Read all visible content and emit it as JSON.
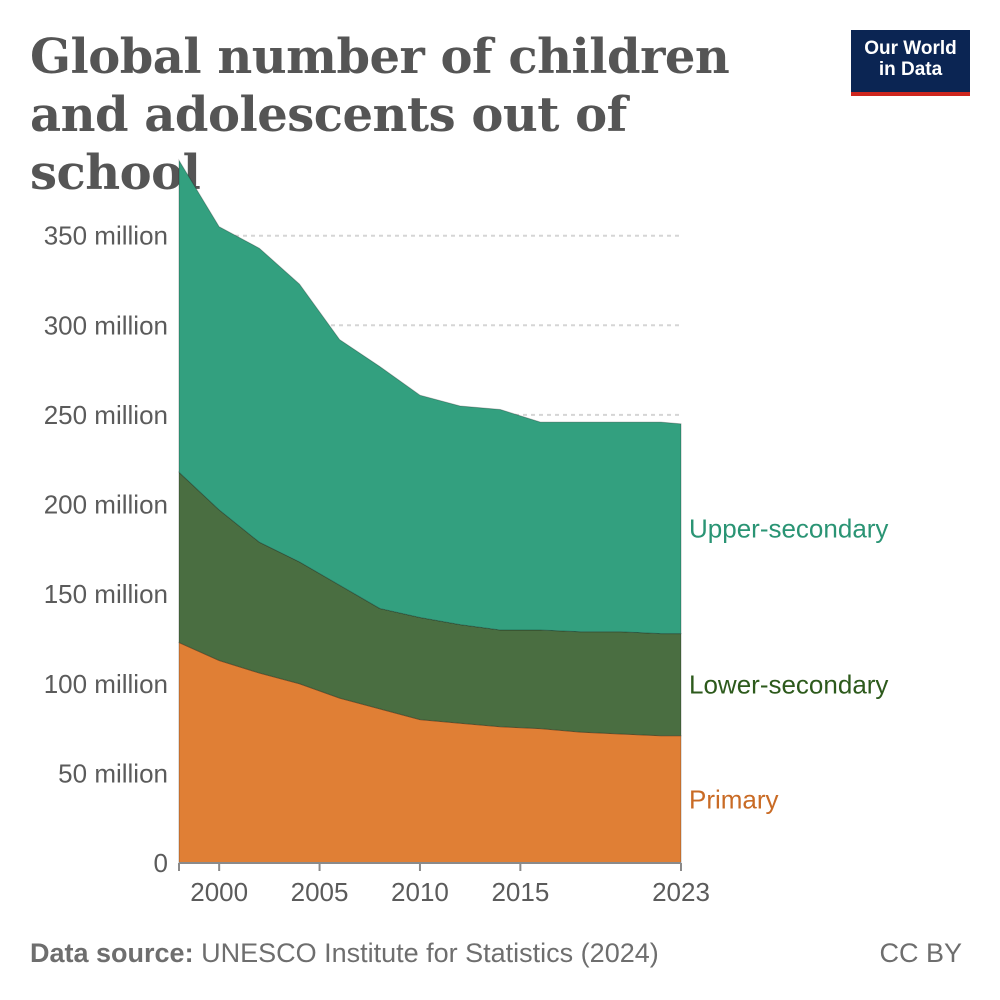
{
  "title": "Global number of children and adolescents out of school",
  "logo": {
    "line1": "Our World",
    "line2": "in Data"
  },
  "footer": {
    "source_label": "Data source:",
    "source_text": "UNESCO Institute for Statistics (2024)",
    "license": "CC BY"
  },
  "colors": {
    "primary": "#e07f35",
    "lower_secondary": "#4a6e41",
    "upper_secondary": "#33a07f",
    "primary_label": "#c96b25",
    "lower_label": "#2d5a1c",
    "upper_label": "#2a9474",
    "grid": "#d5d5d5"
  },
  "chart_data": {
    "type": "area",
    "stacked": true,
    "x": [
      1998,
      2000,
      2002,
      2004,
      2006,
      2008,
      2010,
      2012,
      2014,
      2016,
      2018,
      2020,
      2022,
      2023
    ],
    "series": [
      {
        "name": "Primary",
        "values": [
          123,
          113,
          106,
          100,
          92,
          86,
          80,
          78,
          76,
          75,
          73,
          72,
          71,
          71
        ]
      },
      {
        "name": "Lower-secondary",
        "values": [
          95,
          84,
          73,
          68,
          63,
          56,
          57,
          55,
          54,
          55,
          56,
          57,
          57,
          57
        ]
      },
      {
        "name": "Upper-secondary",
        "values": [
          174,
          158,
          164,
          155,
          137,
          135,
          124,
          122,
          123,
          116,
          117,
          117,
          118,
          117
        ]
      }
    ],
    "yticks": [
      {
        "value": 0,
        "label": "0"
      },
      {
        "value": 50,
        "label": "50 million"
      },
      {
        "value": 100,
        "label": "100 million"
      },
      {
        "value": 150,
        "label": "150 million"
      },
      {
        "value": 200,
        "label": "200 million"
      },
      {
        "value": 250,
        "label": "250 million"
      },
      {
        "value": 300,
        "label": "300 million"
      },
      {
        "value": 350,
        "label": "350 million"
      }
    ],
    "xticks": [
      {
        "value": 2000,
        "label": "2000"
      },
      {
        "value": 2005,
        "label": "2005"
      },
      {
        "value": 2010,
        "label": "2010"
      },
      {
        "value": 2015,
        "label": "2015"
      },
      {
        "value": 2023,
        "label": "2023"
      }
    ],
    "xlim": [
      1998,
      2023
    ],
    "ylim": [
      0,
      390
    ],
    "grid": true,
    "legend": "inline-right"
  }
}
